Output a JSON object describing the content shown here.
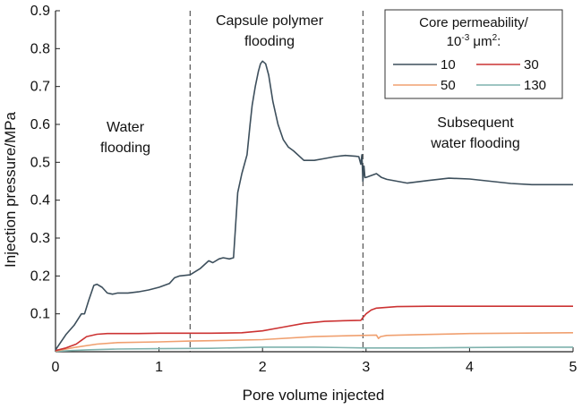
{
  "chart_data": {
    "type": "line",
    "title": "",
    "xlabel": "Pore volume injected",
    "ylabel": "Injection pressure/MPa",
    "xlim": [
      0,
      5
    ],
    "ylim": [
      0,
      0.9
    ],
    "xticks": [
      0,
      1,
      2,
      3,
      4,
      5
    ],
    "xtick_labels": [
      "0",
      "1",
      "2",
      "3",
      "4",
      "5"
    ],
    "yticks": [
      0.1,
      0.2,
      0.3,
      0.4,
      0.5,
      0.6,
      0.7,
      0.8,
      0.9
    ],
    "ytick_labels": [
      "0.1",
      "0.2",
      "0.3",
      "0.4",
      "0.5",
      "0.6",
      "0.7",
      "0.8",
      "0.9"
    ],
    "grid": false,
    "phase_boundaries": [
      1.3,
      2.97
    ],
    "annotations": [
      {
        "lines": [
          "Water",
          "flooding"
        ]
      },
      {
        "lines": [
          "Capsule polymer",
          "flooding"
        ]
      },
      {
        "lines": [
          "Subsequent",
          "water flooding"
        ]
      }
    ],
    "legend": {
      "title_line1": "Core permeability/",
      "title_line2_base": "10",
      "title_line2_exp": "-3",
      "title_line2_unit": " μm",
      "title_line2_unit_exp": "2",
      "title_line2_end": ":",
      "placement": "top-right"
    },
    "series": [
      {
        "name": "10",
        "color": "#3d4f5c",
        "points": [
          [
            0,
            0.005
          ],
          [
            0.05,
            0.025
          ],
          [
            0.1,
            0.045
          ],
          [
            0.18,
            0.07
          ],
          [
            0.25,
            0.1
          ],
          [
            0.28,
            0.1
          ],
          [
            0.32,
            0.135
          ],
          [
            0.37,
            0.175
          ],
          [
            0.4,
            0.178
          ],
          [
            0.45,
            0.17
          ],
          [
            0.5,
            0.155
          ],
          [
            0.55,
            0.152
          ],
          [
            0.6,
            0.155
          ],
          [
            0.7,
            0.155
          ],
          [
            0.8,
            0.158
          ],
          [
            0.9,
            0.163
          ],
          [
            1.0,
            0.17
          ],
          [
            1.1,
            0.18
          ],
          [
            1.15,
            0.195
          ],
          [
            1.2,
            0.2
          ],
          [
            1.3,
            0.203
          ],
          [
            1.4,
            0.22
          ],
          [
            1.48,
            0.24
          ],
          [
            1.52,
            0.235
          ],
          [
            1.58,
            0.245
          ],
          [
            1.62,
            0.248
          ],
          [
            1.68,
            0.245
          ],
          [
            1.72,
            0.248
          ],
          [
            1.76,
            0.42
          ],
          [
            1.8,
            0.47
          ],
          [
            1.85,
            0.52
          ],
          [
            1.88,
            0.6
          ],
          [
            1.9,
            0.65
          ],
          [
            1.93,
            0.7
          ],
          [
            1.96,
            0.74
          ],
          [
            1.98,
            0.76
          ],
          [
            2.0,
            0.767
          ],
          [
            2.03,
            0.76
          ],
          [
            2.06,
            0.73
          ],
          [
            2.1,
            0.66
          ],
          [
            2.15,
            0.6
          ],
          [
            2.2,
            0.56
          ],
          [
            2.25,
            0.54
          ],
          [
            2.3,
            0.53
          ],
          [
            2.4,
            0.505
          ],
          [
            2.5,
            0.505
          ],
          [
            2.6,
            0.51
          ],
          [
            2.7,
            0.515
          ],
          [
            2.8,
            0.518
          ],
          [
            2.9,
            0.516
          ],
          [
            2.93,
            0.515
          ],
          [
            2.95,
            0.495
          ],
          [
            2.96,
            0.52
          ],
          [
            2.97,
            0.45
          ],
          [
            2.98,
            0.49
          ],
          [
            2.99,
            0.46
          ],
          [
            3.0,
            0.46
          ],
          [
            3.05,
            0.465
          ],
          [
            3.1,
            0.47
          ],
          [
            3.15,
            0.46
          ],
          [
            3.2,
            0.455
          ],
          [
            3.4,
            0.445
          ],
          [
            3.6,
            0.452
          ],
          [
            3.8,
            0.458
          ],
          [
            4.0,
            0.456
          ],
          [
            4.2,
            0.45
          ],
          [
            4.4,
            0.444
          ],
          [
            4.6,
            0.441
          ],
          [
            4.8,
            0.441
          ],
          [
            5.0,
            0.441
          ]
        ]
      },
      {
        "name": "30",
        "color": "#cc3333",
        "points": [
          [
            0,
            0.003
          ],
          [
            0.1,
            0.01
          ],
          [
            0.2,
            0.02
          ],
          [
            0.25,
            0.03
          ],
          [
            0.3,
            0.04
          ],
          [
            0.4,
            0.046
          ],
          [
            0.5,
            0.048
          ],
          [
            0.8,
            0.048
          ],
          [
            1.0,
            0.049
          ],
          [
            1.5,
            0.049
          ],
          [
            1.8,
            0.05
          ],
          [
            2.0,
            0.055
          ],
          [
            2.2,
            0.065
          ],
          [
            2.4,
            0.075
          ],
          [
            2.6,
            0.08
          ],
          [
            2.8,
            0.082
          ],
          [
            2.95,
            0.083
          ],
          [
            2.97,
            0.09
          ],
          [
            3.0,
            0.1
          ],
          [
            3.05,
            0.11
          ],
          [
            3.1,
            0.115
          ],
          [
            3.3,
            0.119
          ],
          [
            3.6,
            0.12
          ],
          [
            4.0,
            0.12
          ],
          [
            4.5,
            0.12
          ],
          [
            5.0,
            0.12
          ]
        ]
      },
      {
        "name": "50",
        "color": "#f0a070",
        "points": [
          [
            0,
            0.002
          ],
          [
            0.2,
            0.012
          ],
          [
            0.4,
            0.02
          ],
          [
            0.6,
            0.024
          ],
          [
            1.0,
            0.026
          ],
          [
            1.3,
            0.028
          ],
          [
            1.5,
            0.029
          ],
          [
            2.0,
            0.032
          ],
          [
            2.5,
            0.04
          ],
          [
            2.95,
            0.043
          ],
          [
            3.1,
            0.044
          ],
          [
            3.12,
            0.035
          ],
          [
            3.14,
            0.04
          ],
          [
            3.2,
            0.043
          ],
          [
            3.5,
            0.045
          ],
          [
            4.0,
            0.048
          ],
          [
            5.0,
            0.05
          ]
        ]
      },
      {
        "name": "130",
        "color": "#7fb2ad",
        "points": [
          [
            0,
            0.001
          ],
          [
            0.3,
            0.005
          ],
          [
            0.6,
            0.007
          ],
          [
            1.0,
            0.008
          ],
          [
            1.5,
            0.009
          ],
          [
            2.0,
            0.012
          ],
          [
            2.5,
            0.012
          ],
          [
            3.0,
            0.01
          ],
          [
            3.5,
            0.01
          ],
          [
            4.0,
            0.011
          ],
          [
            4.5,
            0.012
          ],
          [
            5.0,
            0.012
          ]
        ]
      }
    ]
  }
}
